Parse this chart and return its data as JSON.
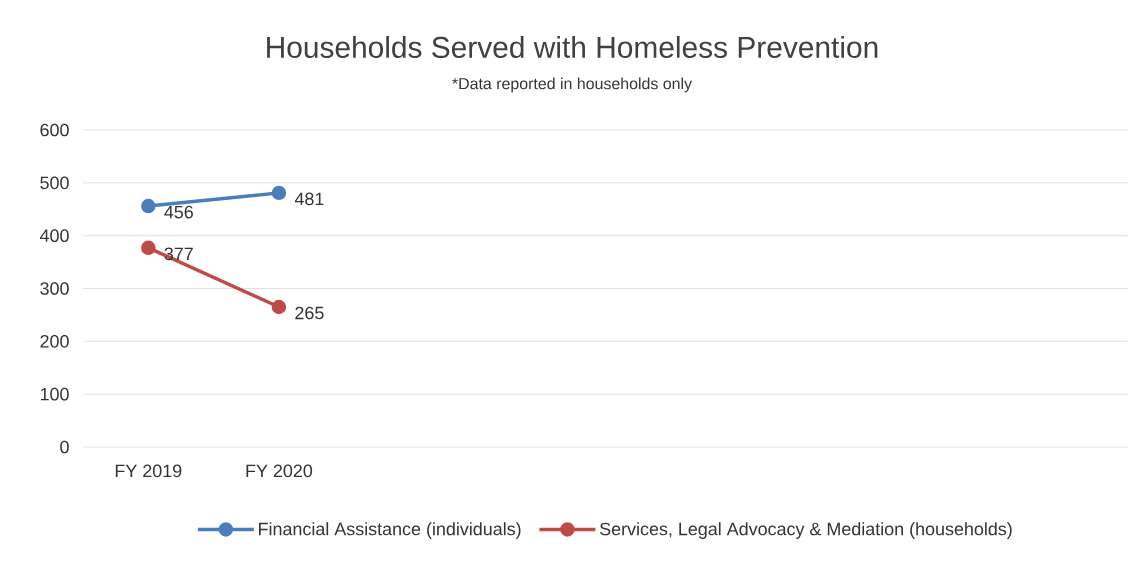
{
  "chart_data": {
    "type": "line",
    "title": "Households Served with Homeless Prevention",
    "subtitle": "*Data reported in households only",
    "categories": [
      "FY 2019",
      "FY 2020",
      null,
      null,
      null,
      null,
      null,
      null
    ],
    "series": [
      {
        "name": "Financial Assistance (individuals)",
        "color": "#4a7ebb",
        "values": [
          456,
          481,
          null,
          null,
          null,
          null,
          null,
          null
        ]
      },
      {
        "name": "Services, Legal Advocacy & Mediation (households)",
        "color": "#be4b48",
        "values": [
          377,
          265,
          null,
          null,
          null,
          null,
          null,
          null
        ]
      }
    ],
    "ylim": [
      0,
      600
    ],
    "yticks": [
      0,
      100,
      200,
      300,
      400,
      500,
      600
    ],
    "grid": "y",
    "legend": "bottom",
    "marker": "circle",
    "line_style": "solid",
    "data_labels": true
  }
}
